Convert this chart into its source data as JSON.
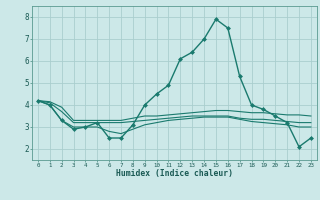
{
  "xlabel": "Humidex (Indice chaleur)",
  "bg_color": "#cce8e8",
  "grid_color": "#aacece",
  "line_color": "#1a7a6e",
  "xlim": [
    -0.5,
    23.5
  ],
  "ylim": [
    1.5,
    8.5
  ],
  "yticks": [
    2,
    3,
    4,
    5,
    6,
    7,
    8
  ],
  "xticks": [
    0,
    1,
    2,
    3,
    4,
    5,
    6,
    7,
    8,
    9,
    10,
    11,
    12,
    13,
    14,
    15,
    16,
    17,
    18,
    19,
    20,
    21,
    22,
    23
  ],
  "series": [
    {
      "x": [
        0,
        1,
        2,
        3,
        4,
        5,
        6,
        7,
        8,
        9,
        10,
        11,
        12,
        13,
        14,
        15,
        16,
        17,
        18,
        19,
        20,
        21,
        22,
        23
      ],
      "y": [
        4.2,
        4.0,
        3.3,
        2.9,
        3.0,
        3.2,
        2.5,
        2.5,
        3.1,
        4.0,
        4.5,
        4.9,
        6.1,
        6.4,
        7.0,
        7.9,
        7.5,
        5.3,
        4.0,
        3.8,
        3.5,
        3.2,
        2.1,
        2.5
      ],
      "marker": "D",
      "markersize": 2.5,
      "linewidth": 1.0,
      "has_marker": true
    },
    {
      "x": [
        0,
        1,
        2,
        3,
        4,
        5,
        6,
        7,
        8,
        9,
        10,
        11,
        12,
        13,
        14,
        15,
        16,
        17,
        18,
        19,
        20,
        21,
        22,
        23
      ],
      "y": [
        4.2,
        4.15,
        3.9,
        3.3,
        3.3,
        3.3,
        3.3,
        3.3,
        3.4,
        3.5,
        3.5,
        3.55,
        3.6,
        3.65,
        3.7,
        3.75,
        3.75,
        3.7,
        3.65,
        3.65,
        3.6,
        3.55,
        3.55,
        3.5
      ],
      "marker": null,
      "linewidth": 0.8,
      "has_marker": false
    },
    {
      "x": [
        0,
        1,
        2,
        3,
        4,
        5,
        6,
        7,
        8,
        9,
        10,
        11,
        12,
        13,
        14,
        15,
        16,
        17,
        18,
        19,
        20,
        21,
        22,
        23
      ],
      "y": [
        4.2,
        4.1,
        3.7,
        3.2,
        3.2,
        3.2,
        3.2,
        3.2,
        3.25,
        3.3,
        3.35,
        3.4,
        3.45,
        3.5,
        3.5,
        3.5,
        3.5,
        3.4,
        3.35,
        3.35,
        3.3,
        3.25,
        3.2,
        3.2
      ],
      "marker": null,
      "linewidth": 0.8,
      "has_marker": false
    },
    {
      "x": [
        0,
        1,
        2,
        3,
        4,
        5,
        6,
        7,
        8,
        9,
        10,
        11,
        12,
        13,
        14,
        15,
        16,
        17,
        18,
        19,
        20,
        21,
        22,
        23
      ],
      "y": [
        4.2,
        4.0,
        3.3,
        3.0,
        3.0,
        3.0,
        2.8,
        2.7,
        2.9,
        3.1,
        3.2,
        3.3,
        3.35,
        3.4,
        3.45,
        3.45,
        3.45,
        3.35,
        3.25,
        3.2,
        3.15,
        3.1,
        3.0,
        3.0
      ],
      "marker": null,
      "linewidth": 0.8,
      "has_marker": false
    }
  ]
}
